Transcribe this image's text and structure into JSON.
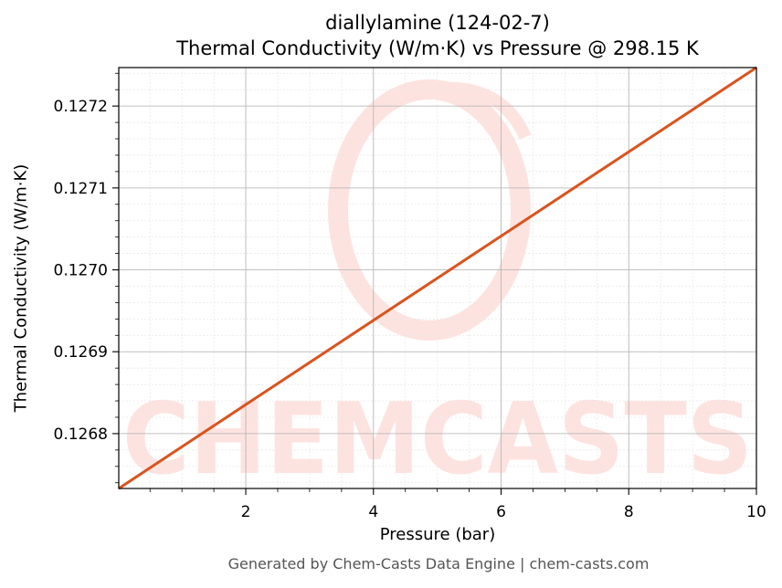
{
  "chart_data": {
    "type": "line",
    "title": "diallylamine (124-02-7)",
    "subtitle": "Thermal Conductivity (W/m·K) vs Pressure @ 298.15 K",
    "xlabel": "Pressure (bar)",
    "ylabel": "Thermal Conductivity (W/m·K)",
    "xlim": [
      0.01,
      10
    ],
    "ylim": [
      0.126733,
      0.127247
    ],
    "x_ticks": [
      2,
      4,
      6,
      8,
      10
    ],
    "x_tick_labels": [
      "2",
      "4",
      "6",
      "8",
      "10"
    ],
    "y_ticks": [
      0.1268,
      0.1269,
      0.127,
      0.1271,
      0.1272
    ],
    "y_tick_labels": [
      "0.1268",
      "0.1269",
      "0.1270",
      "0.1271",
      "0.1272"
    ],
    "grid": true,
    "series": [
      {
        "color": "#d9541e",
        "x": [
          0.01,
          10
        ],
        "y": [
          0.126733,
          0.127247
        ]
      }
    ]
  },
  "watermark": {
    "text": "CHEMCASTS",
    "color": "#fde3e0"
  },
  "footer": "Generated by Chem-Casts Data Engine | chem-casts.com",
  "colors": {
    "line": "#d9541e",
    "grid_major": "#b0b0b0",
    "grid_minor": "#e6e6e6",
    "footer_text": "#555555"
  }
}
